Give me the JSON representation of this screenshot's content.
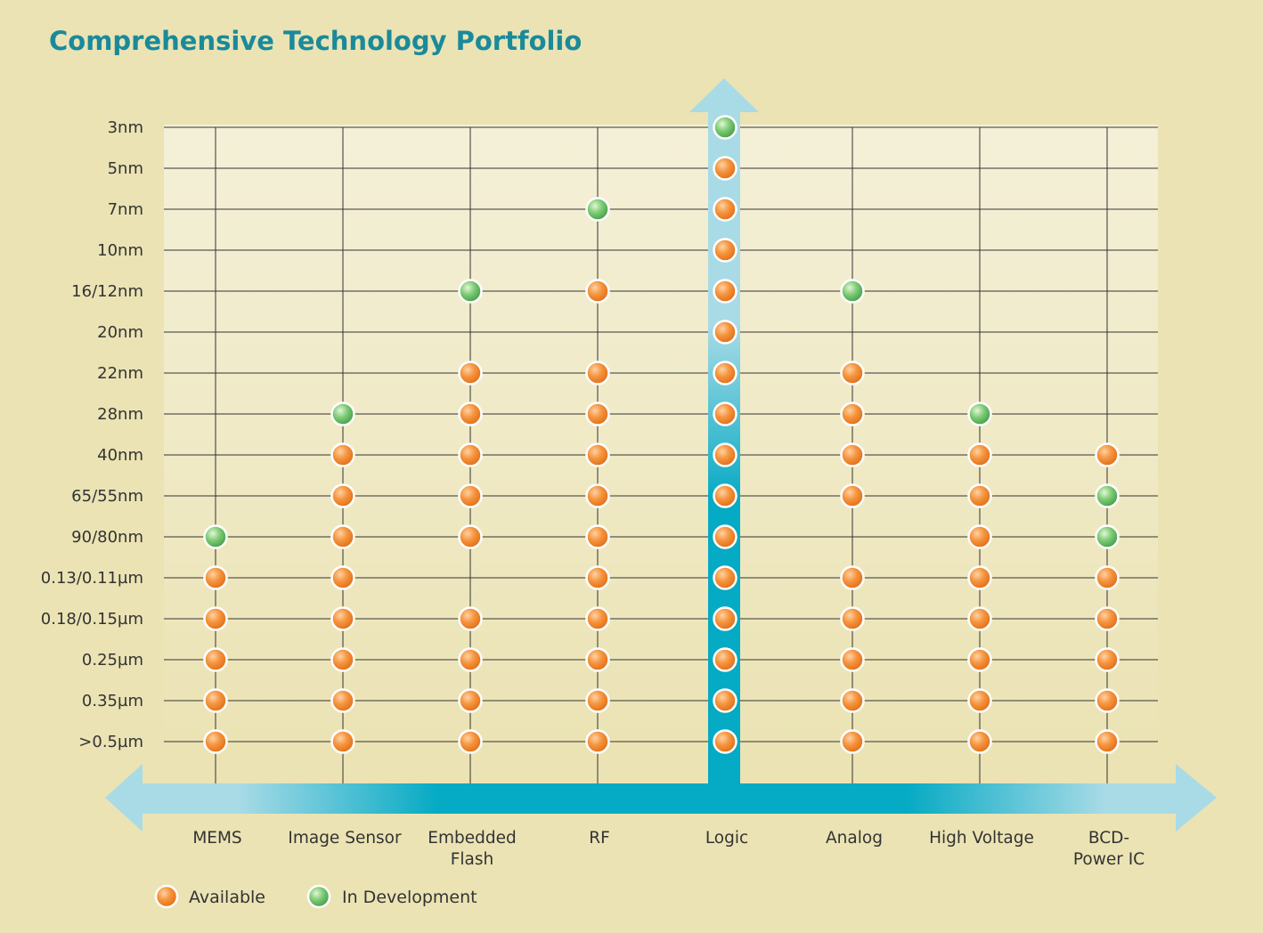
{
  "chart_data": {
    "type": "scatter",
    "title": "Comprehensive Technology Portfolio",
    "categories": [
      "MEMS",
      "Image Sensor",
      "Embedded Flash",
      "RF",
      "Logic",
      "Analog",
      "High Voltage",
      "BCD-Power IC"
    ],
    "category_lines": [
      [
        "MEMS"
      ],
      [
        "Image Sensor"
      ],
      [
        "Embedded",
        "Flash"
      ],
      [
        "RF"
      ],
      [
        "Logic"
      ],
      [
        "Analog"
      ],
      [
        "High Voltage"
      ],
      [
        "BCD-",
        "Power IC"
      ]
    ],
    "nodes": [
      "3nm",
      "5nm",
      "7nm",
      "10nm",
      "16/12nm",
      "20nm",
      "22nm",
      "28nm",
      "40nm",
      "65/55nm",
      "90/80nm",
      "0.13/0.11µm",
      "0.18/0.15µm",
      "0.25µm",
      "0.35µm",
      ">0.5µm"
    ],
    "series": [
      {
        "name": "Available",
        "color": "#f08a3c",
        "points": [
          [
            "MEMS",
            "0.13/0.11µm"
          ],
          [
            "MEMS",
            "0.18/0.15µm"
          ],
          [
            "MEMS",
            "0.25µm"
          ],
          [
            "MEMS",
            "0.35µm"
          ],
          [
            "MEMS",
            ">0.5µm"
          ],
          [
            "Image Sensor",
            "40nm"
          ],
          [
            "Image Sensor",
            "65/55nm"
          ],
          [
            "Image Sensor",
            "90/80nm"
          ],
          [
            "Image Sensor",
            "0.13/0.11µm"
          ],
          [
            "Image Sensor",
            "0.18/0.15µm"
          ],
          [
            "Image Sensor",
            "0.25µm"
          ],
          [
            "Image Sensor",
            "0.35µm"
          ],
          [
            "Image Sensor",
            ">0.5µm"
          ],
          [
            "Embedded Flash",
            "22nm"
          ],
          [
            "Embedded Flash",
            "28nm"
          ],
          [
            "Embedded Flash",
            "40nm"
          ],
          [
            "Embedded Flash",
            "65/55nm"
          ],
          [
            "Embedded Flash",
            "90/80nm"
          ],
          [
            "Embedded Flash",
            "0.18/0.15µm"
          ],
          [
            "Embedded Flash",
            "0.25µm"
          ],
          [
            "Embedded Flash",
            "0.35µm"
          ],
          [
            "Embedded Flash",
            ">0.5µm"
          ],
          [
            "RF",
            "16/12nm"
          ],
          [
            "RF",
            "22nm"
          ],
          [
            "RF",
            "28nm"
          ],
          [
            "RF",
            "40nm"
          ],
          [
            "RF",
            "65/55nm"
          ],
          [
            "RF",
            "90/80nm"
          ],
          [
            "RF",
            "0.13/0.11µm"
          ],
          [
            "RF",
            "0.18/0.15µm"
          ],
          [
            "RF",
            "0.25µm"
          ],
          [
            "RF",
            "0.35µm"
          ],
          [
            "RF",
            ">0.5µm"
          ],
          [
            "Logic",
            "5nm"
          ],
          [
            "Logic",
            "7nm"
          ],
          [
            "Logic",
            "10nm"
          ],
          [
            "Logic",
            "16/12nm"
          ],
          [
            "Logic",
            "20nm"
          ],
          [
            "Logic",
            "22nm"
          ],
          [
            "Logic",
            "28nm"
          ],
          [
            "Logic",
            "40nm"
          ],
          [
            "Logic",
            "65/55nm"
          ],
          [
            "Logic",
            "90/80nm"
          ],
          [
            "Logic",
            "0.13/0.11µm"
          ],
          [
            "Logic",
            "0.18/0.15µm"
          ],
          [
            "Logic",
            "0.25µm"
          ],
          [
            "Logic",
            "0.35µm"
          ],
          [
            "Logic",
            ">0.5µm"
          ],
          [
            "Analog",
            "22nm"
          ],
          [
            "Analog",
            "28nm"
          ],
          [
            "Analog",
            "40nm"
          ],
          [
            "Analog",
            "65/55nm"
          ],
          [
            "Analog",
            "0.13/0.11µm"
          ],
          [
            "Analog",
            "0.18/0.15µm"
          ],
          [
            "Analog",
            "0.25µm"
          ],
          [
            "Analog",
            "0.35µm"
          ],
          [
            "Analog",
            ">0.5µm"
          ],
          [
            "High Voltage",
            "40nm"
          ],
          [
            "High Voltage",
            "65/55nm"
          ],
          [
            "High Voltage",
            "90/80nm"
          ],
          [
            "High Voltage",
            "0.13/0.11µm"
          ],
          [
            "High Voltage",
            "0.18/0.15µm"
          ],
          [
            "High Voltage",
            "0.25µm"
          ],
          [
            "High Voltage",
            "0.35µm"
          ],
          [
            "High Voltage",
            ">0.5µm"
          ],
          [
            "BCD-Power IC",
            "40nm"
          ],
          [
            "BCD-Power IC",
            "0.13/0.11µm"
          ],
          [
            "BCD-Power IC",
            "0.18/0.15µm"
          ],
          [
            "BCD-Power IC",
            "0.25µm"
          ],
          [
            "BCD-Power IC",
            "0.35µm"
          ],
          [
            "BCD-Power IC",
            ">0.5µm"
          ]
        ]
      },
      {
        "name": "In Development",
        "color": "#6cc070",
        "points": [
          [
            "MEMS",
            "90/80nm"
          ],
          [
            "Image Sensor",
            "28nm"
          ],
          [
            "Embedded Flash",
            "16/12nm"
          ],
          [
            "RF",
            "7nm"
          ],
          [
            "Logic",
            "3nm"
          ],
          [
            "Analog",
            "16/12nm"
          ],
          [
            "High Voltage",
            "28nm"
          ],
          [
            "BCD-Power IC",
            "65/55nm"
          ],
          [
            "BCD-Power IC",
            "90/80nm"
          ]
        ]
      }
    ],
    "legend": "bottom-left"
  },
  "colors": {
    "background": "#ebe3b4",
    "title": "#1a8a9a",
    "arrow_dark": "#05aac4",
    "arrow_light": "#a8dbe6"
  }
}
